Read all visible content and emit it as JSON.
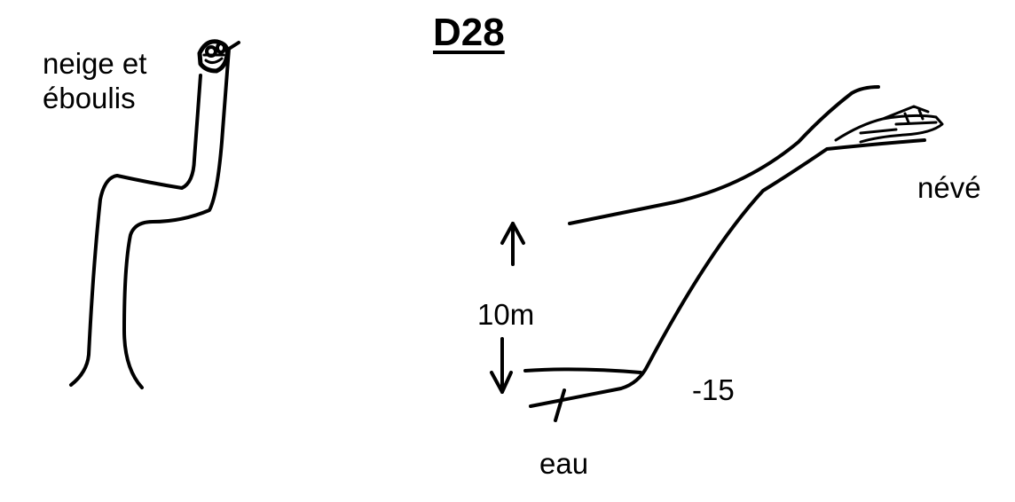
{
  "title": "D28",
  "labels": {
    "plan_top": "neige et\néboulis",
    "snowfield": "névé",
    "scale": "10m",
    "depth": "-15",
    "water": "eau"
  },
  "colors": {
    "ink": "#000000",
    "background": "#ffffff"
  }
}
